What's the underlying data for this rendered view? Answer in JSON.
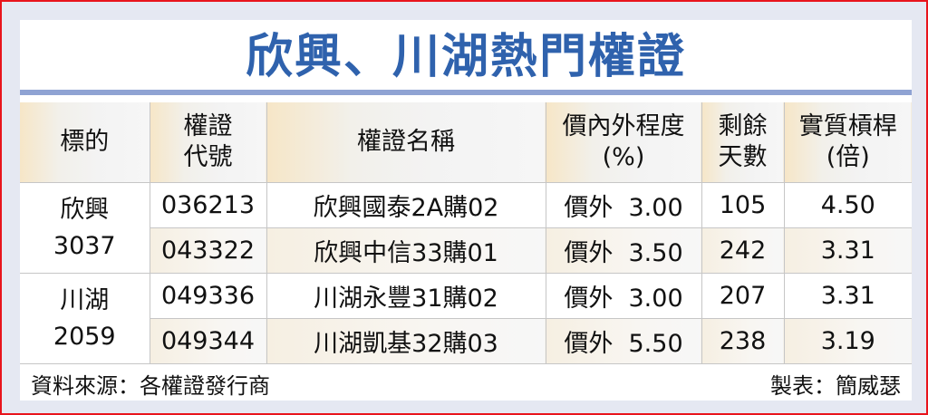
{
  "title": "欣興、川湖熱門權證",
  "headers": [
    "標的",
    "權證\n代號",
    "權證名稱",
    "價內外程度\n(%)",
    "剩餘\n天數",
    "實質槓桿\n(倍)"
  ],
  "groups": [
    {
      "stock": "欣興",
      "code": "3037",
      "rows": [
        {
          "warrant_code": "036213",
          "name": "欣興國泰2A購02",
          "moneyness": "價外  3.00",
          "days": "105",
          "leverage": "4.50"
        },
        {
          "warrant_code": "043322",
          "name": "欣興中信33購01",
          "moneyness": "價外  3.50",
          "days": "242",
          "leverage": "3.31"
        }
      ]
    },
    {
      "stock": "川湖",
      "code": "2059",
      "rows": [
        {
          "warrant_code": "049336",
          "name": "川湖永豐31購02",
          "moneyness": "價外  3.00",
          "days": "207",
          "leverage": "3.31"
        },
        {
          "warrant_code": "049344",
          "name": "川湖凱基32購03",
          "moneyness": "價外  5.50",
          "days": "238",
          "leverage": "3.19"
        }
      ]
    }
  ],
  "footer": {
    "source": "資料來源：各權證發行商",
    "maker": "製表：簡威瑟"
  },
  "colors": {
    "title": "#2f62ad",
    "rule": "#8fa3d3",
    "border": "#e8141c"
  }
}
